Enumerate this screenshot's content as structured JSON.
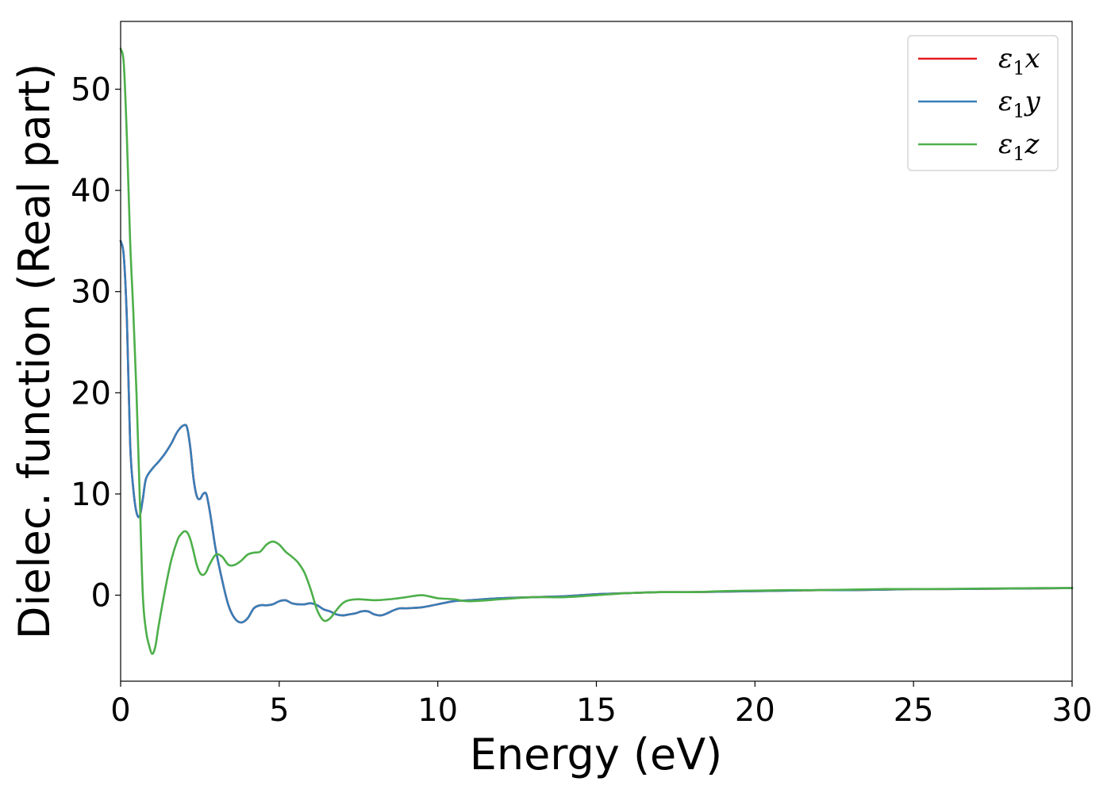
{
  "chart_data": {
    "type": "line",
    "title": "",
    "xlabel": "Energy (eV)",
    "ylabel": "Dielec. function (Real part)",
    "xlim": [
      0,
      30
    ],
    "ylim": [
      -8.5,
      56.7
    ],
    "x_ticks": [
      "0",
      "5",
      "10",
      "15",
      "20",
      "25",
      "30"
    ],
    "y_ticks": [
      "0",
      "10",
      "20",
      "30",
      "40",
      "50"
    ],
    "grid": false,
    "legend_position": "top-right",
    "series": [
      {
        "name": "ε1x",
        "legend_base": "ε",
        "legend_sub": "1",
        "legend_tail": "x",
        "color": "#e41a1c",
        "x": [
          0,
          0.1,
          0.2,
          0.3,
          0.4,
          0.5,
          0.6,
          0.7,
          0.8,
          1.0,
          1.2,
          1.4,
          1.6,
          1.8,
          2.0,
          2.1,
          2.2,
          2.3,
          2.4,
          2.5,
          2.6,
          2.7,
          2.8,
          2.9,
          3.0,
          3.2,
          3.4,
          3.6,
          3.8,
          4.0,
          4.2,
          4.4,
          4.6,
          4.8,
          5.0,
          5.2,
          5.4,
          5.6,
          5.8,
          6.0,
          6.2,
          6.4,
          6.6,
          6.8,
          7.0,
          7.2,
          7.4,
          7.6,
          7.8,
          8.0,
          8.2,
          8.4,
          8.6,
          8.8,
          9.0,
          9.5,
          10.0,
          10.5,
          11.0,
          12.0,
          13.0,
          14.0,
          15.0,
          16.0,
          17.0,
          18.0,
          19.0,
          20.0,
          21.0,
          22.0,
          23.0,
          24.0,
          25.0,
          26.0,
          27.0,
          28.0,
          29.0,
          30.0
        ],
        "y": [
          35,
          33.5,
          27,
          15,
          10.5,
          8.2,
          7.8,
          9.5,
          11.5,
          12.5,
          13.2,
          14.0,
          15.0,
          16.2,
          16.8,
          16.5,
          14.5,
          11.5,
          9.8,
          9.5,
          10.0,
          10.0,
          8.5,
          6.5,
          4.5,
          1.5,
          -1.0,
          -2.3,
          -2.7,
          -2.3,
          -1.3,
          -1.0,
          -1.0,
          -0.9,
          -0.6,
          -0.5,
          -0.8,
          -0.9,
          -0.9,
          -0.8,
          -1.0,
          -1.4,
          -1.6,
          -1.9,
          -2.0,
          -1.9,
          -1.8,
          -1.6,
          -1.6,
          -1.9,
          -2.0,
          -1.8,
          -1.5,
          -1.3,
          -1.3,
          -1.2,
          -0.9,
          -0.6,
          -0.5,
          -0.3,
          -0.2,
          -0.1,
          0.1,
          0.2,
          0.3,
          0.3,
          0.35,
          0.4,
          0.45,
          0.5,
          0.5,
          0.55,
          0.6,
          0.6,
          0.62,
          0.65,
          0.67,
          0.7
        ]
      },
      {
        "name": "ε1y",
        "legend_base": "ε",
        "legend_sub": "1",
        "legend_tail": "y",
        "color": "#377eb8",
        "x": [
          0,
          0.1,
          0.2,
          0.3,
          0.4,
          0.5,
          0.6,
          0.7,
          0.8,
          1.0,
          1.2,
          1.4,
          1.6,
          1.8,
          2.0,
          2.1,
          2.2,
          2.3,
          2.4,
          2.5,
          2.6,
          2.7,
          2.8,
          2.9,
          3.0,
          3.2,
          3.4,
          3.6,
          3.8,
          4.0,
          4.2,
          4.4,
          4.6,
          4.8,
          5.0,
          5.2,
          5.4,
          5.6,
          5.8,
          6.0,
          6.2,
          6.4,
          6.6,
          6.8,
          7.0,
          7.2,
          7.4,
          7.6,
          7.8,
          8.0,
          8.2,
          8.4,
          8.6,
          8.8,
          9.0,
          9.5,
          10.0,
          10.5,
          11.0,
          12.0,
          13.0,
          14.0,
          15.0,
          16.0,
          17.0,
          18.0,
          19.0,
          20.0,
          21.0,
          22.0,
          23.0,
          24.0,
          25.0,
          26.0,
          27.0,
          28.0,
          29.0,
          30.0
        ],
        "y": [
          35,
          33.5,
          27,
          15,
          10.5,
          8.2,
          7.8,
          9.5,
          11.5,
          12.5,
          13.2,
          14.0,
          15.0,
          16.2,
          16.8,
          16.5,
          14.5,
          11.5,
          9.8,
          9.5,
          10.0,
          10.0,
          8.5,
          6.5,
          4.5,
          1.5,
          -1.0,
          -2.3,
          -2.7,
          -2.3,
          -1.3,
          -1.0,
          -1.0,
          -0.9,
          -0.6,
          -0.5,
          -0.8,
          -0.9,
          -0.9,
          -0.8,
          -1.0,
          -1.4,
          -1.6,
          -1.9,
          -2.0,
          -1.9,
          -1.8,
          -1.6,
          -1.6,
          -1.9,
          -2.0,
          -1.8,
          -1.5,
          -1.3,
          -1.3,
          -1.2,
          -0.9,
          -0.6,
          -0.5,
          -0.3,
          -0.2,
          -0.1,
          0.1,
          0.2,
          0.3,
          0.3,
          0.35,
          0.4,
          0.45,
          0.5,
          0.5,
          0.55,
          0.6,
          0.6,
          0.62,
          0.65,
          0.67,
          0.7
        ]
      },
      {
        "name": "ε1z",
        "legend_base": "ε",
        "legend_sub": "1",
        "legend_tail": "z",
        "color": "#4daf4a",
        "x": [
          0,
          0.1,
          0.2,
          0.3,
          0.4,
          0.5,
          0.6,
          0.7,
          0.8,
          0.9,
          1.0,
          1.1,
          1.2,
          1.4,
          1.6,
          1.8,
          1.9,
          2.0,
          2.1,
          2.2,
          2.3,
          2.4,
          2.5,
          2.6,
          2.7,
          2.8,
          3.0,
          3.2,
          3.4,
          3.6,
          3.8,
          4.0,
          4.2,
          4.4,
          4.6,
          4.8,
          5.0,
          5.2,
          5.4,
          5.6,
          5.8,
          6.0,
          6.2,
          6.4,
          6.6,
          6.8,
          7.0,
          7.2,
          7.5,
          8.0,
          8.5,
          9.0,
          9.5,
          10.0,
          10.5,
          11.0,
          12.0,
          13.0,
          14.0,
          15.0,
          16.0,
          17.0,
          18.0,
          19.0,
          20.0,
          21.0,
          22.0,
          23.0,
          24.0,
          25.0,
          26.0,
          27.0,
          28.0,
          29.0,
          30.0
        ],
        "y": [
          54,
          52.5,
          45,
          35,
          28,
          20,
          10,
          0,
          -3.5,
          -5.0,
          -5.8,
          -5.0,
          -3.0,
          0.5,
          3.5,
          5.5,
          6.0,
          6.3,
          6.2,
          5.5,
          4.3,
          3.0,
          2.2,
          2.0,
          2.3,
          3.0,
          4.0,
          3.8,
          3.0,
          3.0,
          3.4,
          4.0,
          4.2,
          4.3,
          5.0,
          5.3,
          5.0,
          4.3,
          3.8,
          3.2,
          2.2,
          0.5,
          -1.5,
          -2.5,
          -2.3,
          -1.5,
          -0.8,
          -0.5,
          -0.4,
          -0.5,
          -0.4,
          -0.2,
          0.0,
          -0.3,
          -0.4,
          -0.6,
          -0.4,
          -0.2,
          -0.2,
          0.0,
          0.2,
          0.3,
          0.3,
          0.4,
          0.45,
          0.5,
          0.5,
          0.55,
          0.6,
          0.6,
          0.62,
          0.65,
          0.67,
          0.7,
          0.7
        ]
      }
    ]
  }
}
